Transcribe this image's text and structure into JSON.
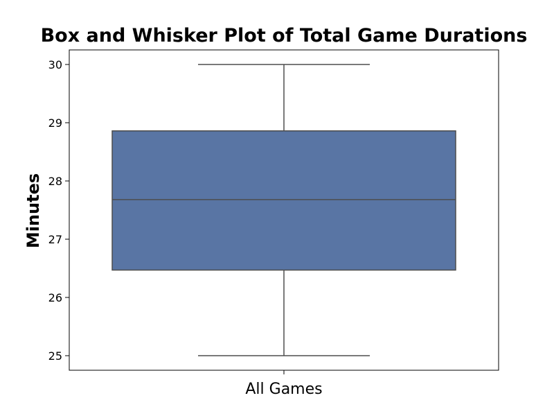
{
  "chart_data": {
    "type": "box",
    "title": "Box and Whisker Plot of Total Game Durations",
    "xlabel": "",
    "ylabel": "Minutes",
    "ylim": [
      24.75,
      30.25
    ],
    "yticks": [
      "25",
      "26",
      "27",
      "28",
      "29",
      "30"
    ],
    "categories": [
      "All Games"
    ],
    "boxes": [
      {
        "category": "All Games",
        "min": 25.0,
        "q1": 26.47,
        "median": 27.68,
        "q3": 28.86,
        "max": 30.0
      }
    ],
    "box_color": "#5975a4",
    "line_color": "#4d4d4d",
    "grid": false,
    "legend": "none"
  }
}
